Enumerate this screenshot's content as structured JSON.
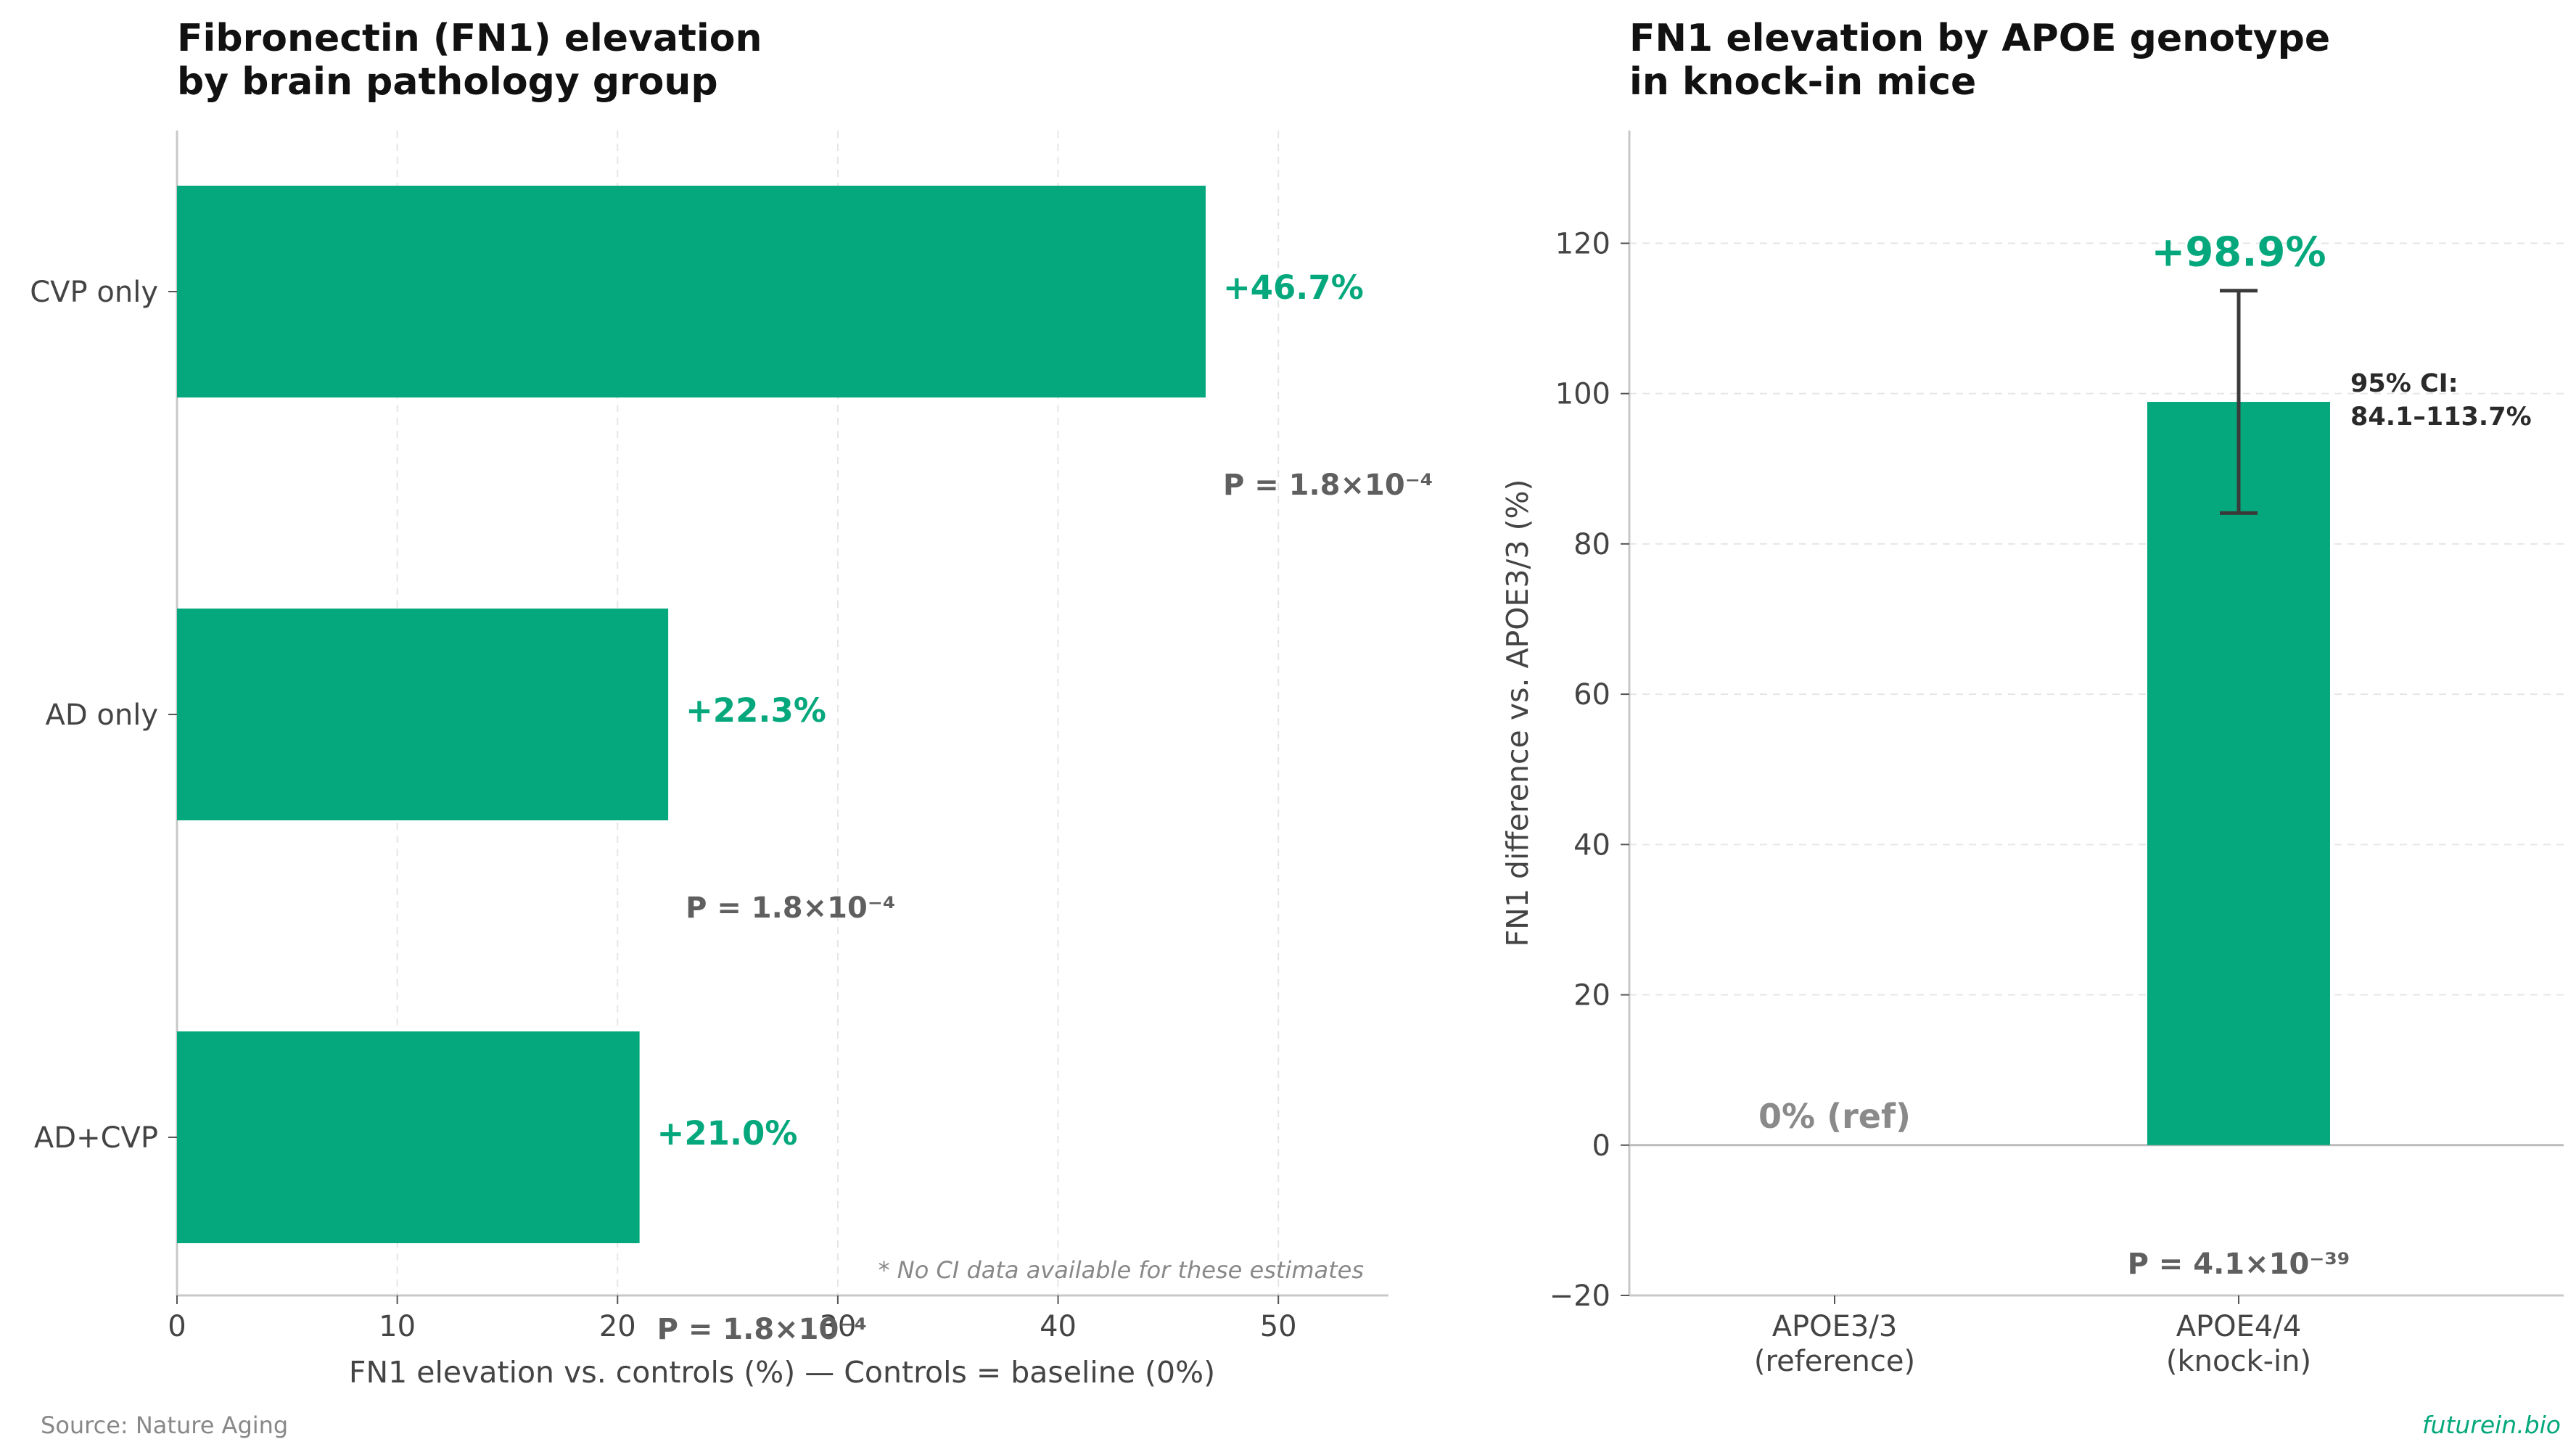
{
  "colors": {
    "bar": "#05a87c",
    "accent": "#05a87c",
    "grid": "#e6e6e6",
    "axis": "#c8c8c8",
    "errorbar": "#3a3a3a"
  },
  "chart_data": [
    {
      "type": "bar",
      "orientation": "horizontal",
      "title": [
        "Fibronectin (FN1) elevation",
        "by brain pathology group"
      ],
      "xlabel": "FN1 elevation vs. controls (%) — Controls = baseline (0%)",
      "xlim": [
        0,
        55
      ],
      "xticks": [
        0,
        10,
        20,
        30,
        40,
        50
      ],
      "categories": [
        "CVP only",
        "AD only",
        "AD+CVP"
      ],
      "values": [
        46.7,
        22.3,
        21.0
      ],
      "value_labels": [
        "+46.7%",
        "+22.3%",
        "+21.0%"
      ],
      "p_labels": [
        "P = 1.8×10⁻⁴",
        "P = 1.8×10⁻⁴",
        "P = 1.8×10⁻⁴"
      ],
      "note": "* No CI data available for these estimates",
      "grid": "vertical, dashed"
    },
    {
      "type": "bar",
      "title": [
        "FN1 elevation by APOE genotype",
        "in knock-in mice"
      ],
      "ylabel": "FN1 difference vs. APOE3/3 (%)",
      "ylim": [
        -20,
        135
      ],
      "yticks": [
        -20,
        0,
        20,
        40,
        60,
        80,
        100,
        120
      ],
      "categories": [
        [
          "APOE3/3",
          "(reference)"
        ],
        [
          "APOE4/4",
          "(knock-in)"
        ]
      ],
      "values": [
        0,
        98.9
      ],
      "ci": [
        84.1,
        113.7
      ],
      "ref_label": "0% (ref)",
      "value_label": "+98.9%",
      "ci_label": [
        "95% CI:",
        "84.1–113.7%"
      ],
      "p_label": "P = 4.1×10⁻³⁹",
      "grid": "horizontal, dashed"
    }
  ],
  "footer": {
    "source": "Source: Nature Aging",
    "brand": "futurein.bio"
  }
}
